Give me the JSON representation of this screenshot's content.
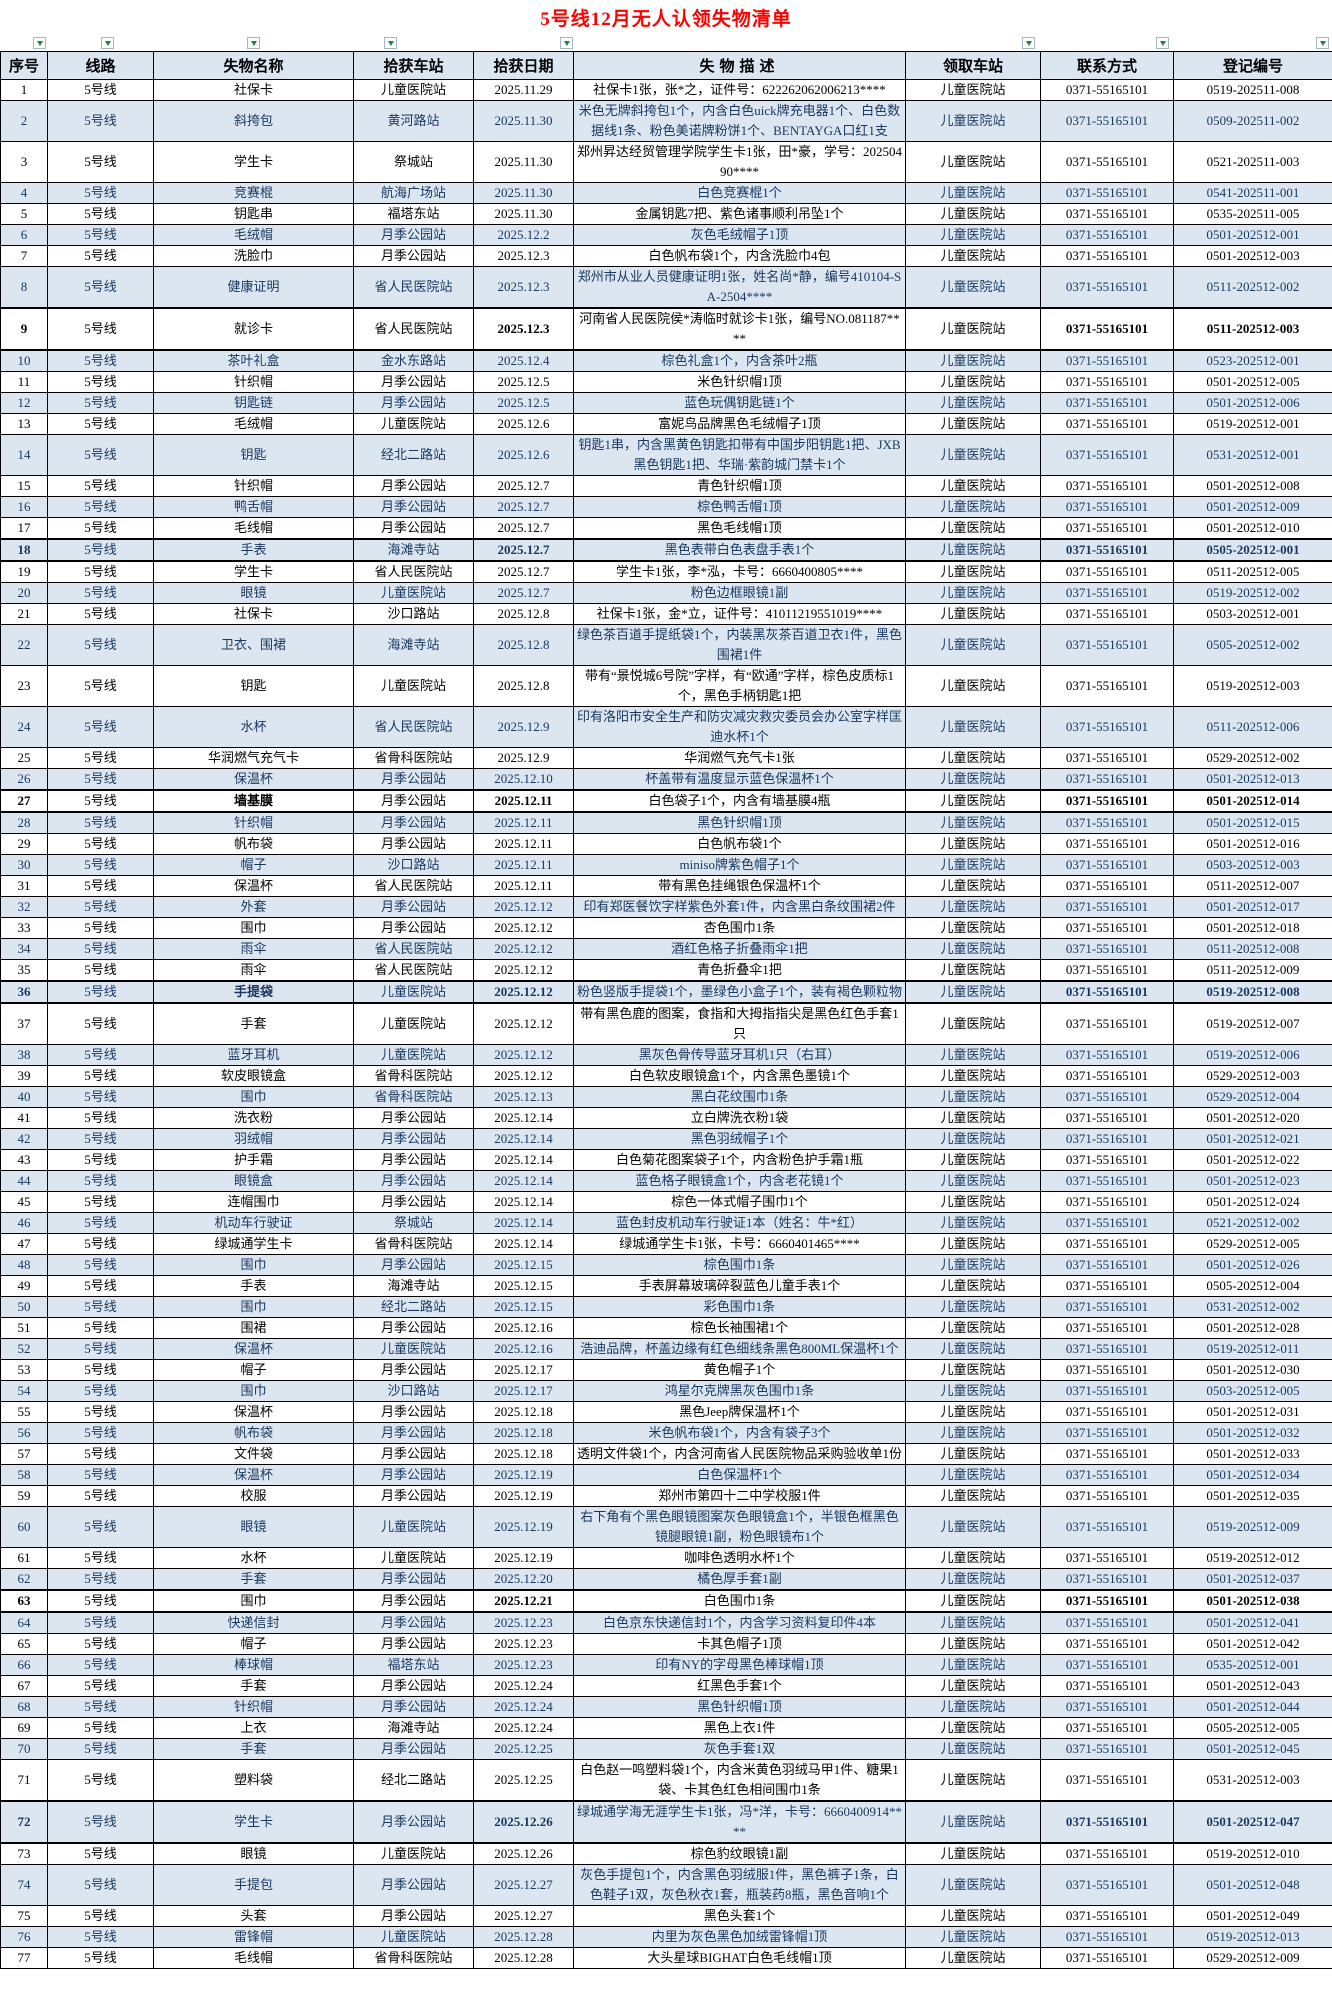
{
  "title": "5号线12月无人认领失物清单",
  "columns": [
    "序号",
    "线路",
    "失物名称",
    "拾获车站",
    "拾获日期",
    "失物描述",
    "领取车站",
    "联系方式",
    "登记编号"
  ],
  "defaults": {
    "line": "5号线",
    "pickup_station": "儿童医院站",
    "phone": "0371-55165101"
  },
  "colors": {
    "title_text": "#ff0000",
    "header_bg": "#dce6f1",
    "alt_row_bg": "#dce6f1",
    "alt_row_text": "#17375e",
    "grid_line": "#000000",
    "filter_arrow": "#1d8348"
  },
  "filter_icons": [
    "filter-dropdown-icon",
    "filter-dropdown-icon",
    "filter-dropdown-icon",
    "filter-dropdown-icon",
    "filter-dropdown-icon",
    "filter-dropdown-icon",
    "filter-dropdown-icon",
    "filter-dropdown-icon"
  ],
  "rows": [
    {
      "no": 1,
      "item": "社保卡",
      "station": "儿童医院站",
      "date": "2025.11.29",
      "desc": "社保卡1张，张*之，证件号：622262062006213****",
      "reg": "0519-202511-008",
      "bold": false,
      "item_bold": false
    },
    {
      "no": 2,
      "item": "斜挎包",
      "station": "黄河路站",
      "date": "2025.11.30",
      "desc": "米色无牌斜挎包1个，内含白色uick牌充电器1个、白色数据线1条、粉色美诺牌粉饼1个、BENTAYGA口红1支",
      "reg": "0509-202511-002",
      "bold": false,
      "item_bold": false
    },
    {
      "no": 3,
      "item": "学生卡",
      "station": "祭城站",
      "date": "2025.11.30",
      "desc": "郑州昇达经贸管理学院学生卡1张，田*豪，学号：20250490****",
      "reg": "0521-202511-003",
      "bold": false,
      "item_bold": false
    },
    {
      "no": 4,
      "item": "竞赛棍",
      "station": "航海广场站",
      "date": "2025.11.30",
      "desc": "白色竞赛棍1个",
      "reg": "0541-202511-001",
      "bold": false,
      "item_bold": false
    },
    {
      "no": 5,
      "item": "钥匙串",
      "station": "福塔东站",
      "date": "2025.11.30",
      "desc": "金属钥匙7把、紫色诸事顺利吊坠1个",
      "reg": "0535-202511-005",
      "bold": false,
      "item_bold": false
    },
    {
      "no": 6,
      "item": "毛绒帽",
      "station": "月季公园站",
      "date": "2025.12.2",
      "desc": "灰色毛绒帽子1顶",
      "reg": "0501-202512-001",
      "bold": false,
      "item_bold": false
    },
    {
      "no": 7,
      "item": "洗脸巾",
      "station": "月季公园站",
      "date": "2025.12.3",
      "desc": "白色帆布袋1个，内含洗脸巾4包",
      "reg": "0501-202512-003",
      "bold": false,
      "item_bold": false
    },
    {
      "no": 8,
      "item": "健康证明",
      "station": "省人民医院站",
      "date": "2025.12.3",
      "desc": "郑州市从业人员健康证明1张，姓名尚*静，编号410104-SA-2504****",
      "reg": "0511-202512-002",
      "bold": false,
      "item_bold": false
    },
    {
      "no": 9,
      "item": "就诊卡",
      "station": "省人民医院站",
      "date": "2025.12.3",
      "desc": "河南省人民医院侯*涛临时就诊卡1张，编号NO.081187****",
      "reg": "0511-202512-003",
      "bold": true,
      "item_bold": false
    },
    {
      "no": 10,
      "item": "茶叶礼盒",
      "station": "金水东路站",
      "date": "2025.12.4",
      "desc": "棕色礼盒1个，内含茶叶2瓶",
      "reg": "0523-202512-001",
      "bold": false,
      "item_bold": false
    },
    {
      "no": 11,
      "item": "针织帽",
      "station": "月季公园站",
      "date": "2025.12.5",
      "desc": "米色针织帽1顶",
      "reg": "0501-202512-005",
      "bold": false,
      "item_bold": false
    },
    {
      "no": 12,
      "item": "钥匙链",
      "station": "月季公园站",
      "date": "2025.12.5",
      "desc": "蓝色玩偶钥匙链1个",
      "reg": "0501-202512-006",
      "bold": false,
      "item_bold": false
    },
    {
      "no": 13,
      "item": "毛绒帽",
      "station": "儿童医院站",
      "date": "2025.12.6",
      "desc": "富妮鸟品牌黑色毛绒帽子1顶",
      "reg": "0519-202512-001",
      "bold": false,
      "item_bold": false
    },
    {
      "no": 14,
      "item": "钥匙",
      "station": "经北二路站",
      "date": "2025.12.6",
      "desc": "钥匙1串，内含黑黄色钥匙扣带有中国步阳钥匙1把、JXB黑色钥匙1把、华瑞·紫韵城门禁卡1个",
      "reg": "0531-202512-001",
      "bold": false,
      "item_bold": false
    },
    {
      "no": 15,
      "item": "针织帽",
      "station": "月季公园站",
      "date": "2025.12.7",
      "desc": "青色针织帽1顶",
      "reg": "0501-202512-008",
      "bold": false,
      "item_bold": false
    },
    {
      "no": 16,
      "item": "鸭舌帽",
      "station": "月季公园站",
      "date": "2025.12.7",
      "desc": "棕色鸭舌帽1顶",
      "reg": "0501-202512-009",
      "bold": false,
      "item_bold": false
    },
    {
      "no": 17,
      "item": "毛线帽",
      "station": "月季公园站",
      "date": "2025.12.7",
      "desc": "黑色毛线帽1顶",
      "reg": "0501-202512-010",
      "bold": false,
      "item_bold": false
    },
    {
      "no": 18,
      "item": "手表",
      "station": "海滩寺站",
      "date": "2025.12.7",
      "desc": "黑色表带白色表盘手表1个",
      "reg": "0505-202512-001",
      "bold": true,
      "item_bold": false
    },
    {
      "no": 19,
      "item": "学生卡",
      "station": "省人民医院站",
      "date": "2025.12.7",
      "desc": "学生卡1张，李*泓，卡号：6660400805****",
      "reg": "0511-202512-005",
      "bold": false,
      "item_bold": false
    },
    {
      "no": 20,
      "item": "眼镜",
      "station": "儿童医院站",
      "date": "2025.12.7",
      "desc": "粉色边框眼镜1副",
      "reg": "0519-202512-002",
      "bold": false,
      "item_bold": false
    },
    {
      "no": 21,
      "item": "社保卡",
      "station": "沙口路站",
      "date": "2025.12.8",
      "desc": "社保卡1张，金*立，证件号：41011219551019****",
      "reg": "0503-202512-001",
      "bold": false,
      "item_bold": false
    },
    {
      "no": 22,
      "item": "卫衣、围裙",
      "station": "海滩寺站",
      "date": "2025.12.8",
      "desc": "绿色茶百道手提纸袋1个，内装黑灰茶百道卫衣1件，黑色围裙1件",
      "reg": "0505-202512-002",
      "bold": false,
      "item_bold": false
    },
    {
      "no": 23,
      "item": "钥匙",
      "station": "儿童医院站",
      "date": "2025.12.8",
      "desc": "带有“景悦城6号院”字样，有“欧通”字样，棕色皮质标1个，黑色手柄钥匙1把",
      "reg": "0519-202512-003",
      "bold": false,
      "item_bold": false
    },
    {
      "no": 24,
      "item": "水杯",
      "station": "省人民医院站",
      "date": "2025.12.9",
      "desc": "印有洛阳市安全生产和防灾减灾救灾委员会办公室字样匡迪水杯1个",
      "reg": "0511-202512-006",
      "bold": false,
      "item_bold": false
    },
    {
      "no": 25,
      "item": "华润燃气充气卡",
      "station": "省骨科医院站",
      "date": "2025.12.9",
      "desc": "华润燃气充气卡1张",
      "reg": "0529-202512-002",
      "bold": false,
      "item_bold": false
    },
    {
      "no": 26,
      "item": "保温杯",
      "station": "月季公园站",
      "date": "2025.12.10",
      "desc": "杯盖带有温度显示蓝色保温杯1个",
      "reg": "0501-202512-013",
      "bold": false,
      "item_bold": false
    },
    {
      "no": 27,
      "item": "墙基膜",
      "station": "月季公园站",
      "date": "2025.12.11",
      "desc": "白色袋子1个，内含有墙基膜4瓶",
      "reg": "0501-202512-014",
      "bold": true,
      "item_bold": true
    },
    {
      "no": 28,
      "item": "针织帽",
      "station": "月季公园站",
      "date": "2025.12.11",
      "desc": "黑色针织帽1顶",
      "reg": "0501-202512-015",
      "bold": false,
      "item_bold": false
    },
    {
      "no": 29,
      "item": "帆布袋",
      "station": "月季公园站",
      "date": "2025.12.11",
      "desc": "白色帆布袋1个",
      "reg": "0501-202512-016",
      "bold": false,
      "item_bold": false
    },
    {
      "no": 30,
      "item": "帽子",
      "station": "沙口路站",
      "date": "2025.12.11",
      "desc": "miniso牌紫色帽子1个",
      "reg": "0503-202512-003",
      "bold": false,
      "item_bold": false
    },
    {
      "no": 31,
      "item": "保温杯",
      "station": "省人民医院站",
      "date": "2025.12.11",
      "desc": "带有黑色挂绳银色保温杯1个",
      "reg": "0511-202512-007",
      "bold": false,
      "item_bold": false
    },
    {
      "no": 32,
      "item": "外套",
      "station": "月季公园站",
      "date": "2025.12.12",
      "desc": "印有郑医餐饮字样紫色外套1件，内含黑白条纹围裙2件",
      "reg": "0501-202512-017",
      "bold": false,
      "item_bold": false
    },
    {
      "no": 33,
      "item": "围巾",
      "station": "月季公园站",
      "date": "2025.12.12",
      "desc": "杏色围巾1条",
      "reg": "0501-202512-018",
      "bold": false,
      "item_bold": false
    },
    {
      "no": 34,
      "item": "雨伞",
      "station": "省人民医院站",
      "date": "2025.12.12",
      "desc": "酒红色格子折叠雨伞1把",
      "reg": "0511-202512-008",
      "bold": false,
      "item_bold": false
    },
    {
      "no": 35,
      "item": "雨伞",
      "station": "省人民医院站",
      "date": "2025.12.12",
      "desc": "青色折叠伞1把",
      "reg": "0511-202512-009",
      "bold": false,
      "item_bold": false
    },
    {
      "no": 36,
      "item": "手提袋",
      "station": "儿童医院站",
      "date": "2025.12.12",
      "desc": "粉色竖版手提袋1个，墨绿色小盒子1个，装有褐色颗粒物",
      "reg": "0519-202512-008",
      "bold": true,
      "item_bold": true
    },
    {
      "no": 37,
      "item": "手套",
      "station": "儿童医院站",
      "date": "2025.12.12",
      "desc": "带有黑色鹿的图案，食指和大拇指指尖是黑色红色手套1只",
      "reg": "0519-202512-007",
      "bold": false,
      "item_bold": false
    },
    {
      "no": 38,
      "item": "蓝牙耳机",
      "station": "儿童医院站",
      "date": "2025.12.12",
      "desc": "黑灰色骨传导蓝牙耳机1只（右耳）",
      "reg": "0519-202512-006",
      "bold": false,
      "item_bold": false
    },
    {
      "no": 39,
      "item": "软皮眼镜盒",
      "station": "省骨科医院站",
      "date": "2025.12.12",
      "desc": "白色软皮眼镜盒1个，内含黑色墨镜1个",
      "reg": "0529-202512-003",
      "bold": false,
      "item_bold": false
    },
    {
      "no": 40,
      "item": "围巾",
      "station": "省骨科医院站",
      "date": "2025.12.13",
      "desc": "黑白花纹围巾1条",
      "reg": "0529-202512-004",
      "bold": false,
      "item_bold": false
    },
    {
      "no": 41,
      "item": "洗衣粉",
      "station": "月季公园站",
      "date": "2025.12.14",
      "desc": "立白牌洗衣粉1袋",
      "reg": "0501-202512-020",
      "bold": false,
      "item_bold": false
    },
    {
      "no": 42,
      "item": "羽绒帽",
      "station": "月季公园站",
      "date": "2025.12.14",
      "desc": "黑色羽绒帽子1个",
      "reg": "0501-202512-021",
      "bold": false,
      "item_bold": false
    },
    {
      "no": 43,
      "item": "护手霜",
      "station": "月季公园站",
      "date": "2025.12.14",
      "desc": "白色菊花图案袋子1个，内含粉色护手霜1瓶",
      "reg": "0501-202512-022",
      "bold": false,
      "item_bold": false
    },
    {
      "no": 44,
      "item": "眼镜盒",
      "station": "月季公园站",
      "date": "2025.12.14",
      "desc": "蓝色格子眼镜盒1个，内含老花镜1个",
      "reg": "0501-202512-023",
      "bold": false,
      "item_bold": false
    },
    {
      "no": 45,
      "item": "连帽围巾",
      "station": "月季公园站",
      "date": "2025.12.14",
      "desc": "棕色一体式帽子围巾1个",
      "reg": "0501-202512-024",
      "bold": false,
      "item_bold": false
    },
    {
      "no": 46,
      "item": "机动车行驶证",
      "station": "祭城站",
      "date": "2025.12.14",
      "desc": "蓝色封皮机动车行驶证1本（姓名：牛*红）",
      "reg": "0521-202512-002",
      "bold": false,
      "item_bold": false
    },
    {
      "no": 47,
      "item": "绿城通学生卡",
      "station": "省骨科医院站",
      "date": "2025.12.14",
      "desc": "绿城通学生卡1张，卡号：6660401465****",
      "reg": "0529-202512-005",
      "bold": false,
      "item_bold": false
    },
    {
      "no": 48,
      "item": "围巾",
      "station": "月季公园站",
      "date": "2025.12.15",
      "desc": "棕色围巾1条",
      "reg": "0501-202512-026",
      "bold": false,
      "item_bold": false
    },
    {
      "no": 49,
      "item": "手表",
      "station": "海滩寺站",
      "date": "2025.12.15",
      "desc": "手表屏幕玻璃碎裂蓝色儿童手表1个",
      "reg": "0505-202512-004",
      "bold": false,
      "item_bold": false
    },
    {
      "no": 50,
      "item": "围巾",
      "station": "经北二路站",
      "date": "2025.12.15",
      "desc": "彩色围巾1条",
      "reg": "0531-202512-002",
      "bold": false,
      "item_bold": false
    },
    {
      "no": 51,
      "item": "围裙",
      "station": "月季公园站",
      "date": "2025.12.16",
      "desc": "棕色长袖围裙1个",
      "reg": "0501-202512-028",
      "bold": false,
      "item_bold": false
    },
    {
      "no": 52,
      "item": "保温杯",
      "station": "儿童医院站",
      "date": "2025.12.16",
      "desc": "浩迪品牌，杯盖边缘有红色细线条黑色800ML保温杯1个",
      "reg": "0519-202512-011",
      "bold": false,
      "item_bold": false
    },
    {
      "no": 53,
      "item": "帽子",
      "station": "月季公园站",
      "date": "2025.12.17",
      "desc": "黄色帽子1个",
      "reg": "0501-202512-030",
      "bold": false,
      "item_bold": false
    },
    {
      "no": 54,
      "item": "围巾",
      "station": "沙口路站",
      "date": "2025.12.17",
      "desc": "鸿星尔克牌黑灰色围巾1条",
      "reg": "0503-202512-005",
      "bold": false,
      "item_bold": false
    },
    {
      "no": 55,
      "item": "保温杯",
      "station": "月季公园站",
      "date": "2025.12.18",
      "desc": "黑色Jeep牌保温杯1个",
      "reg": "0501-202512-031",
      "bold": false,
      "item_bold": false
    },
    {
      "no": 56,
      "item": "帆布袋",
      "station": "月季公园站",
      "date": "2025.12.18",
      "desc": "米色帆布袋1个，内含有袋子3个",
      "reg": "0501-202512-032",
      "bold": false,
      "item_bold": false
    },
    {
      "no": 57,
      "item": "文件袋",
      "station": "月季公园站",
      "date": "2025.12.18",
      "desc": "透明文件袋1个，内含河南省人民医院物品采购验收单1份",
      "reg": "0501-202512-033",
      "bold": false,
      "item_bold": false
    },
    {
      "no": 58,
      "item": "保温杯",
      "station": "月季公园站",
      "date": "2025.12.19",
      "desc": "白色保温杯1个",
      "reg": "0501-202512-034",
      "bold": false,
      "item_bold": false
    },
    {
      "no": 59,
      "item": "校服",
      "station": "月季公园站",
      "date": "2025.12.19",
      "desc": "郑州市第四十二中学校服1件",
      "reg": "0501-202512-035",
      "bold": false,
      "item_bold": false
    },
    {
      "no": 60,
      "item": "眼镜",
      "station": "儿童医院站",
      "date": "2025.12.19",
      "desc": "右下角有个黑色眼镜图案灰色眼镜盒1个，半银色框黑色镜腿眼镜1副，粉色眼镜布1个",
      "reg": "0519-202512-009",
      "bold": false,
      "item_bold": false
    },
    {
      "no": 61,
      "item": "水杯",
      "station": "儿童医院站",
      "date": "2025.12.19",
      "desc": "咖啡色透明水杯1个",
      "reg": "0519-202512-012",
      "bold": false,
      "item_bold": false
    },
    {
      "no": 62,
      "item": "手套",
      "station": "月季公园站",
      "date": "2025.12.20",
      "desc": "橘色厚手套1副",
      "reg": "0501-202512-037",
      "bold": false,
      "item_bold": false
    },
    {
      "no": 63,
      "item": "围巾",
      "station": "月季公园站",
      "date": "2025.12.21",
      "desc": "白色围巾1条",
      "reg": "0501-202512-038",
      "bold": true,
      "item_bold": false
    },
    {
      "no": 64,
      "item": "快递信封",
      "station": "月季公园站",
      "date": "2025.12.23",
      "desc": "白色京东快递信封1个，内含学习资料复印件4本",
      "reg": "0501-202512-041",
      "bold": false,
      "item_bold": false
    },
    {
      "no": 65,
      "item": "帽子",
      "station": "月季公园站",
      "date": "2025.12.23",
      "desc": "卡其色帽子1顶",
      "reg": "0501-202512-042",
      "bold": false,
      "item_bold": false
    },
    {
      "no": 66,
      "item": "棒球帽",
      "station": "福塔东站",
      "date": "2025.12.23",
      "desc": "印有NY的字母黑色棒球帽1顶",
      "reg": "0535-202512-001",
      "bold": false,
      "item_bold": false
    },
    {
      "no": 67,
      "item": "手套",
      "station": "月季公园站",
      "date": "2025.12.24",
      "desc": "红黑色手套1个",
      "reg": "0501-202512-043",
      "bold": false,
      "item_bold": false
    },
    {
      "no": 68,
      "item": "针织帽",
      "station": "月季公园站",
      "date": "2025.12.24",
      "desc": "黑色针织帽1顶",
      "reg": "0501-202512-044",
      "bold": false,
      "item_bold": false
    },
    {
      "no": 69,
      "item": "上衣",
      "station": "海滩寺站",
      "date": "2025.12.24",
      "desc": "黑色上衣1件",
      "reg": "0505-202512-005",
      "bold": false,
      "item_bold": false
    },
    {
      "no": 70,
      "item": "手套",
      "station": "月季公园站",
      "date": "2025.12.25",
      "desc": "灰色手套1双",
      "reg": "0501-202512-045",
      "bold": false,
      "item_bold": false
    },
    {
      "no": 71,
      "item": "塑料袋",
      "station": "经北二路站",
      "date": "2025.12.25",
      "desc": "白色赵一鸣塑料袋1个，内含米黄色羽绒马甲1件、糖果1袋、卡其色红色相间围巾1条",
      "reg": "0531-202512-003",
      "bold": false,
      "item_bold": false
    },
    {
      "no": 72,
      "item": "学生卡",
      "station": "月季公园站",
      "date": "2025.12.26",
      "desc": "绿城通学海无涯学生卡1张，冯*洋，卡号：6660400914****",
      "reg": "0501-202512-047",
      "bold": true,
      "item_bold": false
    },
    {
      "no": 73,
      "item": "眼镜",
      "station": "儿童医院站",
      "date": "2025.12.26",
      "desc": "棕色豹纹眼镜1副",
      "reg": "0519-202512-010",
      "bold": false,
      "item_bold": false
    },
    {
      "no": 74,
      "item": "手提包",
      "station": "月季公园站",
      "date": "2025.12.27",
      "desc": "灰色手提包1个，内含黑色羽绒服1件，黑色裤子1条，白色鞋子1双，灰色秋衣1套，瓶装药8瓶，黑色音响1个",
      "reg": "0501-202512-048",
      "bold": false,
      "item_bold": false
    },
    {
      "no": 75,
      "item": "头套",
      "station": "月季公园站",
      "date": "2025.12.27",
      "desc": "黑色头套1个",
      "reg": "0501-202512-049",
      "bold": false,
      "item_bold": false
    },
    {
      "no": 76,
      "item": "雷锋帽",
      "station": "儿童医院站",
      "date": "2025.12.28",
      "desc": "内里为灰色黑色加绒雷锋帽1顶",
      "reg": "0519-202512-013",
      "bold": false,
      "item_bold": false
    },
    {
      "no": 77,
      "item": "毛线帽",
      "station": "省骨科医院站",
      "date": "2025.12.28",
      "desc": "大头星球BIGHAT白色毛线帽1顶",
      "reg": "0529-202512-009",
      "bold": false,
      "item_bold": false
    }
  ]
}
